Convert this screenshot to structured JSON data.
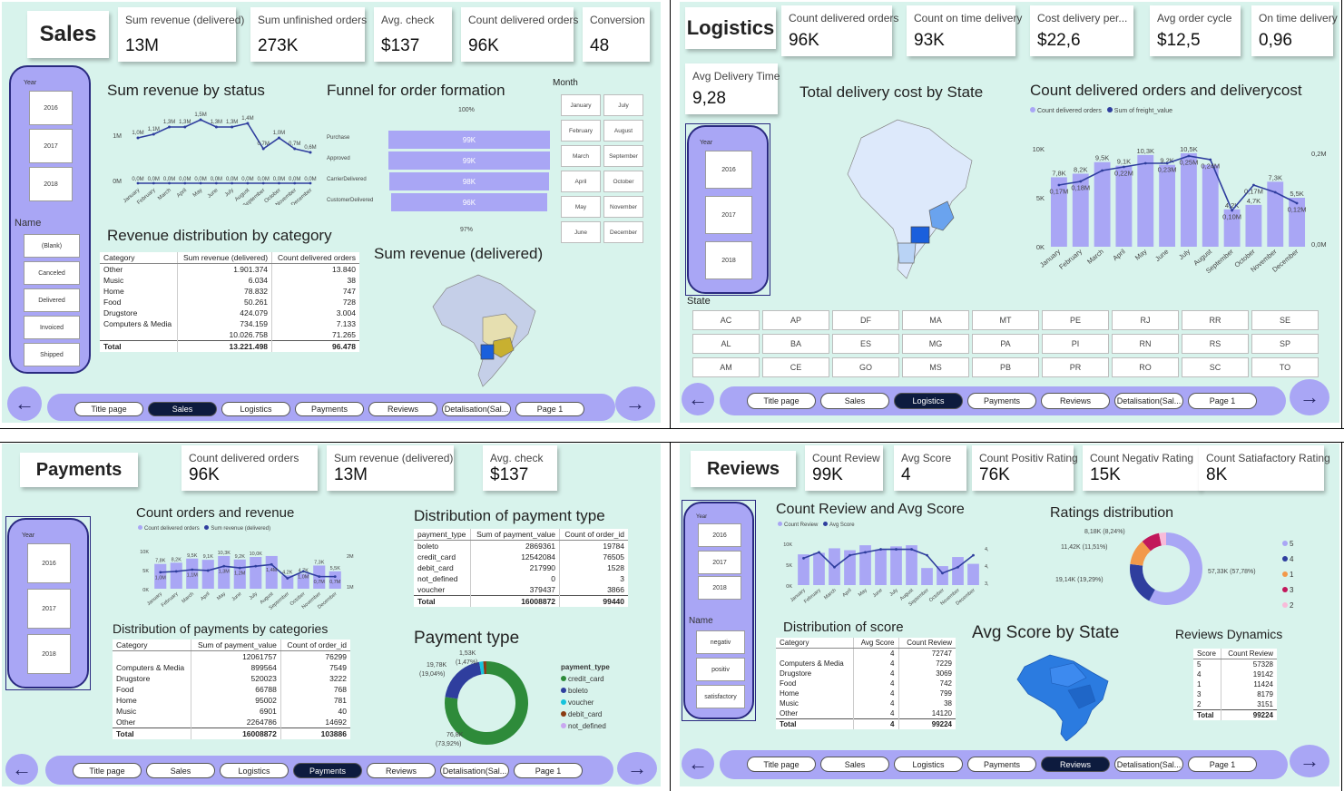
{
  "colors": {
    "panel_bg": "#d8f3ec",
    "accent": "#a9a6f5",
    "dark_navy": "#0d1b3e",
    "line": "#2f3e9e"
  },
  "nav": {
    "buttons": [
      "Title page",
      "Sales",
      "Logistics",
      "Payments",
      "Reviews",
      "Detalisation(Sal...",
      "Page 1"
    ],
    "prev_icon": "←",
    "next_icon": "→"
  },
  "sales": {
    "title": "Sales",
    "kpis": [
      {
        "label": "Sum revenue (delivered)",
        "value": "13M"
      },
      {
        "label": "Sum unfinished orders",
        "value": "273K"
      },
      {
        "label": "Avg. check",
        "value": "$137"
      },
      {
        "label": "Count delivered orders",
        "value": "96K"
      },
      {
        "label": "Conversion",
        "value": "48"
      }
    ],
    "slicer": {
      "year_title": "Year",
      "years": [
        "2016",
        "2017",
        "2018"
      ],
      "name_title": "Name",
      "names": [
        "(Blank)",
        "Canceled",
        "Delivered",
        "Invoiced",
        "Shipped"
      ]
    },
    "revenue_status": {
      "title": "Sum revenue by status",
      "months": [
        "January",
        "February",
        "March",
        "April",
        "May",
        "June",
        "July",
        "August",
        "September",
        "October",
        "November",
        "December"
      ],
      "top_labels": [
        "1,0M",
        "1,1M",
        "1,3M",
        "1,3M",
        "1,5M",
        "1,3M",
        "1,3M",
        "1,4M",
        "0,7M",
        "1,0M",
        "0,7M",
        "0,6M"
      ],
      "bottom_labels": [
        "0,0M",
        "0,0M",
        "0,0M",
        "0,0M",
        "0,0M",
        "0,0M",
        "0,0M",
        "0,0M",
        "0,0M",
        "0,0M",
        "0,0M",
        "0,0M"
      ],
      "y_top": "1M",
      "y_bottom": "0M"
    },
    "funnel": {
      "title": "Funnel for order formation",
      "top_pct": "100%",
      "bottom_pct": "97%",
      "stages": [
        {
          "label": "Purchase",
          "value": "99K",
          "pct": 100
        },
        {
          "label": "Approved",
          "value": "99K",
          "pct": 100
        },
        {
          "label": "CarrierDelivered",
          "value": "98K",
          "pct": 99
        },
        {
          "label": "CustomerDelivered",
          "value": "96K",
          "pct": 97
        }
      ]
    },
    "month_slicer": {
      "title": "Month",
      "months": [
        "January",
        "July",
        "February",
        "August",
        "March",
        "September",
        "April",
        "October",
        "May",
        "November",
        "June",
        "December"
      ]
    },
    "category_table": {
      "title": "Revenue distribution by category",
      "headers": [
        "Category",
        "Sum revenue (delivered)",
        "Count delivered orders"
      ],
      "rows": [
        [
          "Other",
          "1.901.374",
          "13.840"
        ],
        [
          "Music",
          "6.034",
          "38"
        ],
        [
          "Home",
          "78.832",
          "747"
        ],
        [
          "Food",
          "50.261",
          "728"
        ],
        [
          "Drugstore",
          "424.079",
          "3.004"
        ],
        [
          "Computers & Media",
          "734.159",
          "7.133"
        ],
        [
          "",
          "10.026.758",
          "71.265"
        ]
      ],
      "total": [
        "Total",
        "13.221.498",
        "96.478"
      ]
    },
    "map_title": "Sum revenue (delivered)"
  },
  "logistics": {
    "title": "Logistics",
    "kpis": [
      {
        "label": "Count delivered orders",
        "value": "96K"
      },
      {
        "label": "Count on time delivery",
        "value": "93K"
      },
      {
        "label": "Cost delivery per...",
        "value": "$22,6"
      },
      {
        "label": "Avg order cycle",
        "value": "$12,5"
      },
      {
        "label": "On time delivery",
        "value": "0,96"
      }
    ],
    "avg_delivery": {
      "label": "Avg Delivery Time",
      "value": "9,28"
    },
    "slicer": {
      "year_title": "Year",
      "years": [
        "2016",
        "2017",
        "2018"
      ]
    },
    "map_title": "Total delivery cost by State",
    "combo": {
      "title": "Count delivered orders and deliverycost",
      "legend": [
        "Count delivered orders",
        "Sum of freight_value"
      ],
      "months": [
        "January",
        "February",
        "March",
        "April",
        "May",
        "June",
        "July",
        "August",
        "September",
        "October",
        "November",
        "December"
      ],
      "counts": [
        7.8,
        8.2,
        9.5,
        9.1,
        10.3,
        9.2,
        10.5,
        9.2,
        4.2,
        4.7,
        7.3,
        5.5
      ],
      "count_labels": [
        "7,8K",
        "8,2K",
        "9,5K",
        "9,1K",
        "10,3K",
        "9,2K",
        "10,5K",
        "",
        "4,2K",
        "4,7K",
        "7,3K",
        "5,5K"
      ],
      "freight": [
        0.17,
        0.18,
        0.21,
        0.22,
        0.23,
        0.23,
        0.25,
        0.24,
        0.1,
        0.17,
        0.15,
        0.12
      ],
      "freight_labels": [
        "0,17M",
        "0,18M",
        "",
        "0,22M",
        "",
        "0,23M",
        "0,25M",
        "0,24M",
        "0,10M",
        "0,17M",
        "",
        "0,12M"
      ],
      "y_left": [
        "10K",
        "5K",
        "0K"
      ],
      "y_right": [
        "0,2M",
        "0,0M"
      ]
    },
    "state_slicer": {
      "title": "State",
      "states": [
        "AC",
        "AP",
        "DF",
        "MA",
        "MT",
        "PE",
        "RJ",
        "RR",
        "SE",
        "AL",
        "BA",
        "ES",
        "MG",
        "PA",
        "PI",
        "RN",
        "RS",
        "SP",
        "AM",
        "CE",
        "GO",
        "MS",
        "PB",
        "PR",
        "RO",
        "SC",
        "TO"
      ]
    }
  },
  "payments": {
    "title": "Payments",
    "kpis": [
      {
        "label": "Count delivered orders",
        "value": "96K"
      },
      {
        "label": "Sum revenue (delivered)",
        "value": "13M"
      },
      {
        "label": "Avg. check",
        "value": "$137"
      }
    ],
    "slicer": {
      "year_title": "Year",
      "years": [
        "2016",
        "2017",
        "2018"
      ]
    },
    "combo": {
      "title": "Count orders and revenue",
      "legend": [
        "Count delivered orders",
        "Sum revenue (delivered)"
      ],
      "months": [
        "January",
        "February",
        "March",
        "April",
        "May",
        "June",
        "July",
        "August",
        "September",
        "October",
        "November",
        "December"
      ],
      "counts": [
        7.8,
        8.2,
        9.5,
        9.1,
        10.3,
        9.2,
        10.0,
        10.3,
        4.2,
        4.7,
        7.3,
        5.5
      ],
      "count_labels": [
        "7,8K",
        "8,2K",
        "9,5K",
        "9,1K",
        "10,3K",
        "9,2K",
        "10,0K",
        "",
        "4,2K",
        "4,7K",
        "7,3K",
        "5,5K"
      ],
      "revenue_labels": [
        "1,0M",
        "",
        "1,1M",
        "",
        "1,3M",
        "1,2M",
        "",
        "1,4M",
        "",
        "1,0M",
        "0,7M",
        "0,7M"
      ],
      "y_left": [
        "10K",
        "5K",
        "0K"
      ],
      "y_right": [
        "2M",
        "1M"
      ]
    },
    "type_table": {
      "title": "Distribution of payment type",
      "headers": [
        "payment_type",
        "Sum of payment_value",
        "Count of order_id"
      ],
      "rows": [
        [
          "boleto",
          "2869361",
          "19784"
        ],
        [
          "credit_card",
          "12542084",
          "76505"
        ],
        [
          "debit_card",
          "217990",
          "1528"
        ],
        [
          "not_defined",
          "0",
          "3"
        ],
        [
          "voucher",
          "379437",
          "3866"
        ]
      ],
      "total": [
        "Total",
        "16008872",
        "99440"
      ]
    },
    "cat_table": {
      "title": "Distribution of payments by categories",
      "headers": [
        "Category",
        "Sum of payment_value",
        "Count of order_id"
      ],
      "rows": [
        [
          "",
          "12061757",
          "76299"
        ],
        [
          "Computers & Media",
          "899564",
          "7549"
        ],
        [
          "Drugstore",
          "520023",
          "3222"
        ],
        [
          "Food",
          "66788",
          "768"
        ],
        [
          "Home",
          "95002",
          "781"
        ],
        [
          "Music",
          "6901",
          "40"
        ],
        [
          "Other",
          "2264786",
          "14692"
        ]
      ],
      "total": [
        "Total",
        "16008872",
        "103886"
      ]
    },
    "donut": {
      "title": "Payment type",
      "legend_title": "payment_type",
      "segments": [
        {
          "name": "credit_card",
          "value": 76.8,
          "color": "#2e8b3a"
        },
        {
          "name": "boleto",
          "value": 19.78,
          "color": "#2f3e9e"
        },
        {
          "name": "voucher",
          "value": 1.53,
          "color": "#16c3dc"
        },
        {
          "name": "debit_card",
          "value": 1.2,
          "color": "#8a3b12"
        },
        {
          "name": "not_defined",
          "value": 0.01,
          "color": "#c9a7f0"
        }
      ],
      "label_top": "1,53K",
      "label_top2": "(1,47%)",
      "label_left": "19,78K",
      "label_left2": "(19,04%)",
      "label_bottom": "76,8K",
      "label_bottom2": "(73,92%)"
    }
  },
  "reviews": {
    "title": "Reviews",
    "kpis": [
      {
        "label": "Count Review",
        "value": "99K"
      },
      {
        "label": "Avg Score",
        "value": "4"
      },
      {
        "label": "Count Positiv Rating",
        "value": "76K"
      },
      {
        "label": "Count Negativ Rating",
        "value": "15K"
      },
      {
        "label": "Count Satiafactory Rating",
        "value": "8K"
      }
    ],
    "slicer": {
      "year_title": "Year",
      "years": [
        "2016",
        "2017",
        "2018"
      ],
      "name_title": "Name",
      "names": [
        "negativ",
        "positiv",
        "satisfactory"
      ]
    },
    "combo": {
      "title": "Count Review and Avg Score",
      "legend": [
        "Count Review",
        "Avg Score"
      ],
      "months": [
        "January",
        "February",
        "March",
        "April",
        "May",
        "June",
        "July",
        "August",
        "September",
        "October",
        "November",
        "December"
      ],
      "counts": [
        8.1,
        8.5,
        9.7,
        9.2,
        10.5,
        9.4,
        10.2,
        10.5,
        4.5,
        5.0,
        7.4,
        5.6
      ],
      "scores": [
        4.05,
        4.15,
        3.9,
        4.1,
        4.15,
        4.2,
        4.2,
        4.2,
        4.1,
        3.8,
        3.9,
        4.1
      ],
      "y_left": [
        "10K",
        "5K",
        "0K"
      ],
      "y_right": [
        "4,2",
        "4,0",
        "3,8"
      ]
    },
    "ratings": {
      "title": "Ratings distribution",
      "segments": [
        {
          "name": "5",
          "value": 57.78,
          "color": "#a9a6f5"
        },
        {
          "name": "4",
          "value": 19.29,
          "color": "#2f3e9e"
        },
        {
          "name": "1",
          "value": 11.51,
          "color": "#f2994a"
        },
        {
          "name": "3",
          "value": 8.24,
          "color": "#c2185b"
        },
        {
          "name": "2",
          "value": 3.18,
          "color": "#f8bbd9"
        }
      ],
      "label_right": "57,33K (57,78%)",
      "label_left": "19,14K (19,29%)",
      "label_tl": "11,42K (11,51%)",
      "label_top": "8,18K (8,24%)"
    },
    "score_table": {
      "title": "Distribution of score",
      "headers": [
        "Category",
        "Avg Score",
        "Count Review"
      ],
      "rows": [
        [
          "",
          "4",
          "72747"
        ],
        [
          "Computers & Media",
          "4",
          "7229"
        ],
        [
          "Drugstore",
          "4",
          "3069"
        ],
        [
          "Food",
          "4",
          "742"
        ],
        [
          "Home",
          "4",
          "799"
        ],
        [
          "Music",
          "4",
          "38"
        ],
        [
          "Other",
          "4",
          "14120"
        ]
      ],
      "total": [
        "Total",
        "4",
        "99224"
      ]
    },
    "map_title": "Avg Score by State",
    "dyn_table": {
      "title": "Reviews Dynamics",
      "headers": [
        "Score",
        "Count Review"
      ],
      "rows": [
        [
          "5",
          "57328"
        ],
        [
          "4",
          "19142"
        ],
        [
          "1",
          "11424"
        ],
        [
          "3",
          "8179"
        ],
        [
          "2",
          "3151"
        ]
      ],
      "total": [
        "Total",
        "99224"
      ]
    }
  }
}
